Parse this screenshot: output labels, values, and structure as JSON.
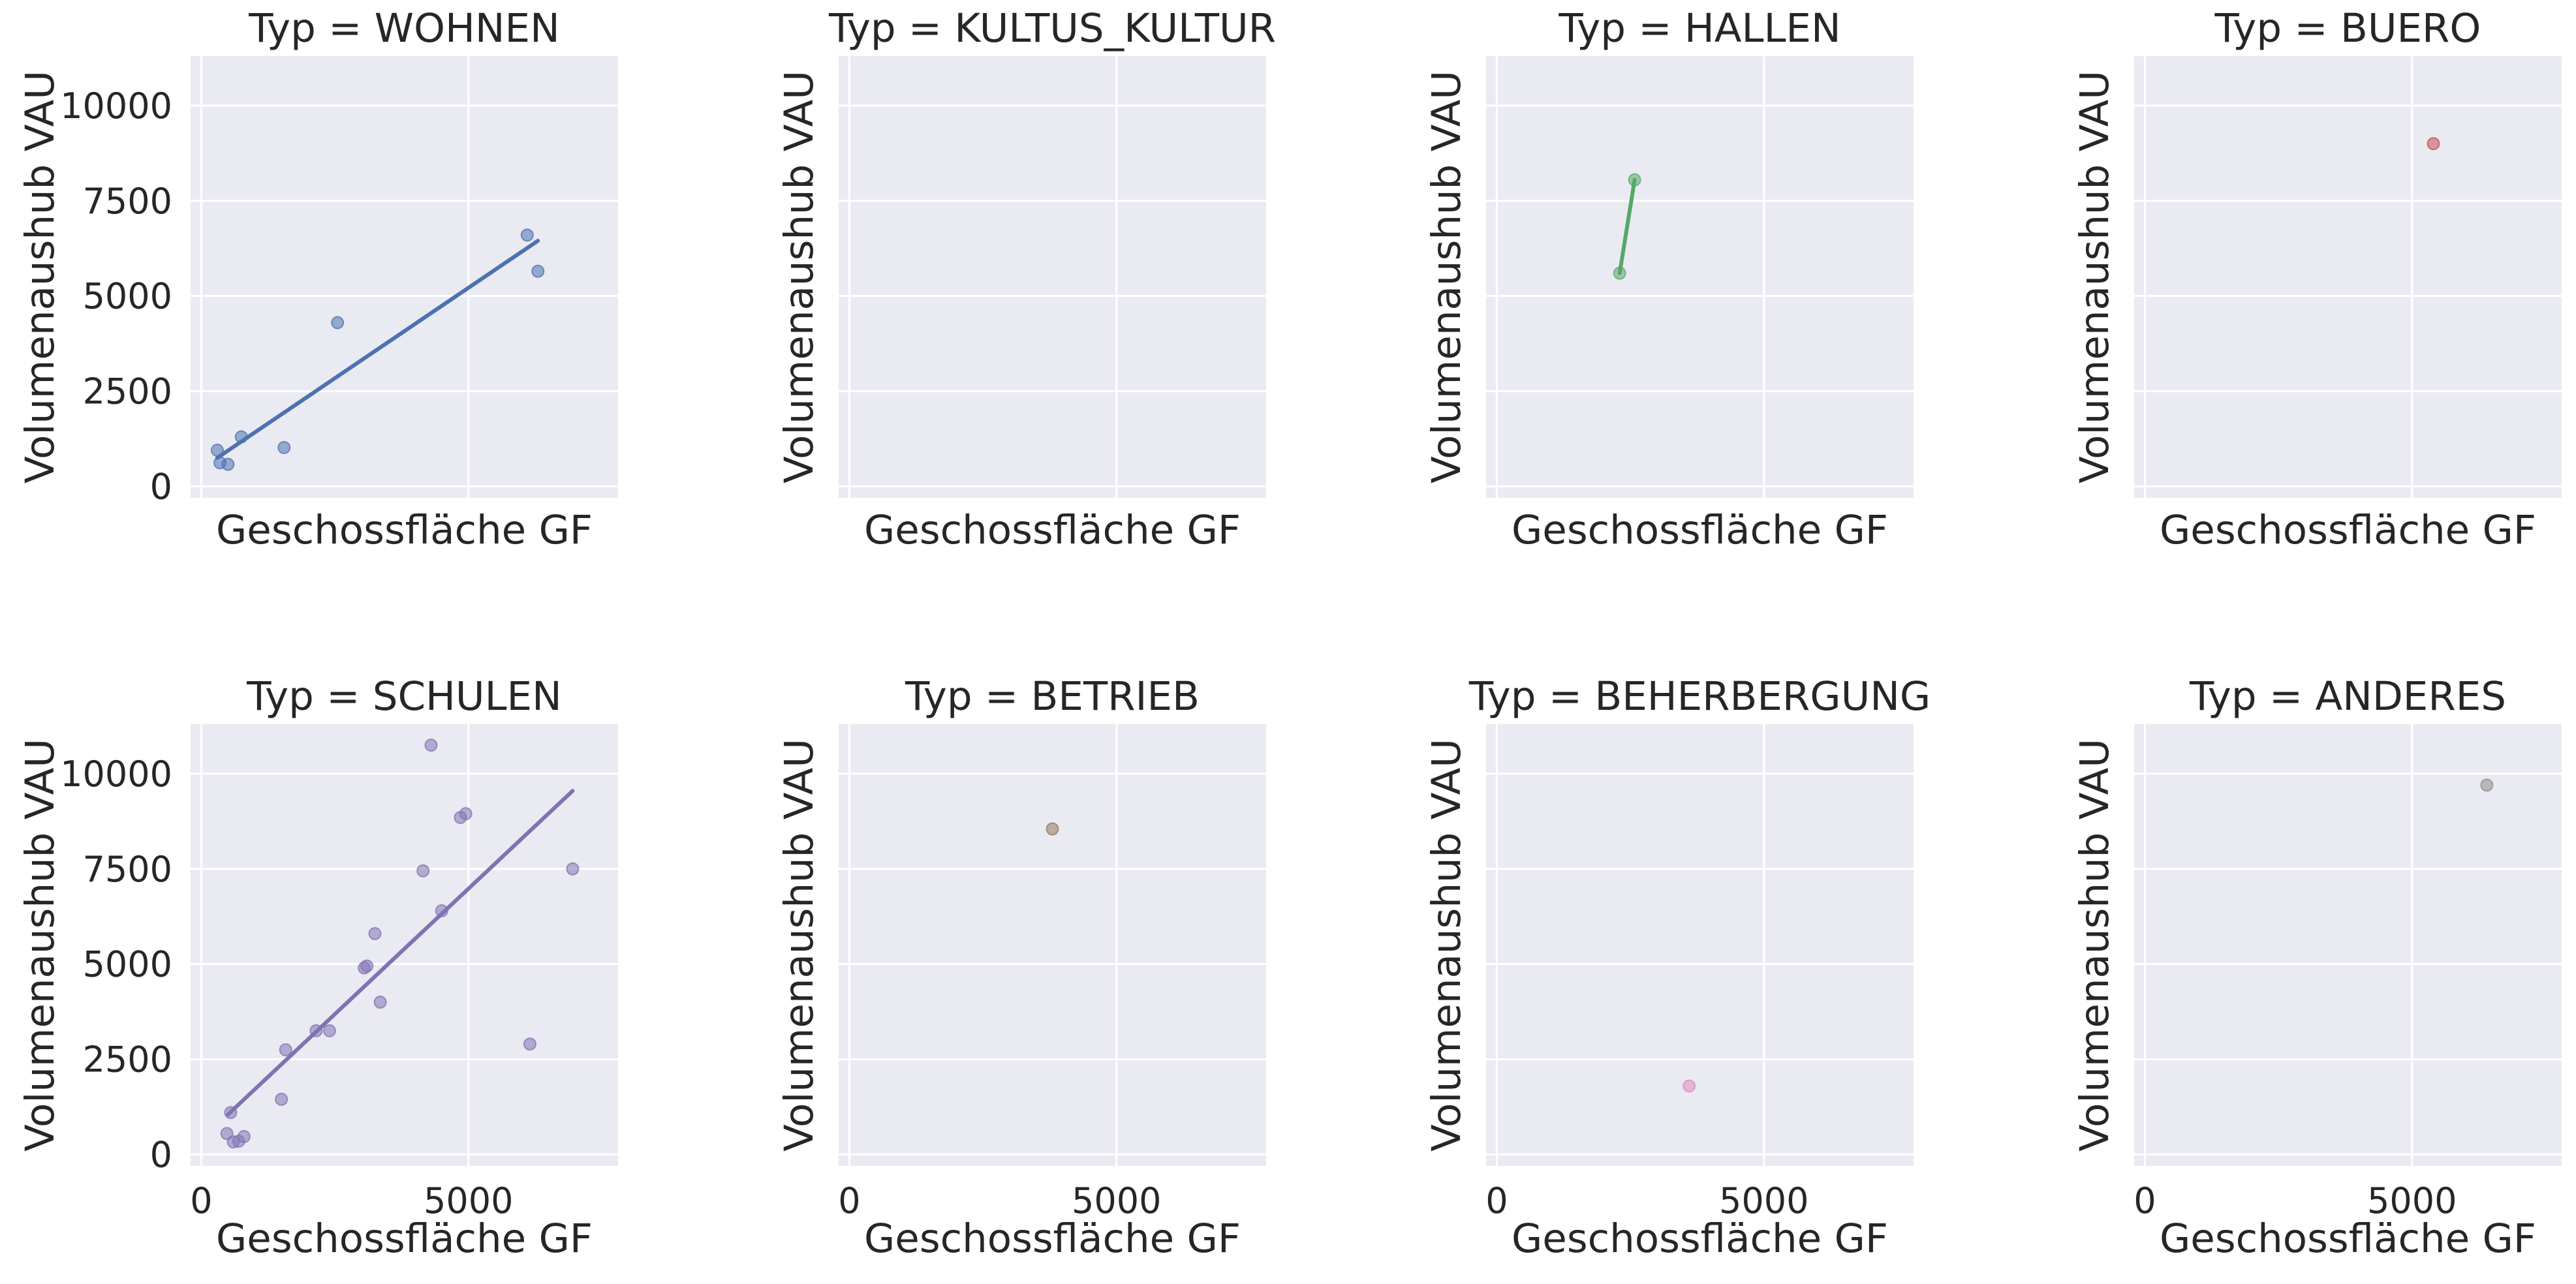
{
  "chart_data": {
    "type": "scatter",
    "style": "seaborn-darkgrid facet grid, 2 rows x 4 columns, shared axes, scatter with linear regression line",
    "xlabel": "Geschossfläche GF",
    "ylabel": "Volumenaushub VAU",
    "xlim": [
      -200,
      7800
    ],
    "ylim": [
      -300,
      11300
    ],
    "xticks": [
      0,
      5000
    ],
    "yticks": [
      0,
      2500,
      5000,
      7500,
      10000
    ],
    "xtick_labels": [
      "0",
      "5000"
    ],
    "ytick_labels": [
      "0",
      "2500",
      "5000",
      "7500",
      "10000"
    ],
    "grid": true,
    "facets": [
      {
        "title": "Typ = WOHNEN",
        "color": "#4c72b0",
        "points": [
          [
            300,
            950
          ],
          [
            350,
            620
          ],
          [
            500,
            580
          ],
          [
            750,
            1300
          ],
          [
            1550,
            1020
          ],
          [
            2550,
            4300
          ],
          [
            6100,
            6600
          ],
          [
            6300,
            5650
          ]
        ],
        "fit": [
          [
            300,
            750
          ],
          [
            6300,
            6450
          ]
        ]
      },
      {
        "title": "Typ = KULTUS_KULTUR",
        "color": "#dd8452",
        "points": [],
        "fit": null
      },
      {
        "title": "Typ = HALLEN",
        "color": "#55a868",
        "points": [
          [
            2300,
            5600
          ],
          [
            2580,
            8050
          ]
        ],
        "fit": [
          [
            2300,
            5600
          ],
          [
            2580,
            8050
          ]
        ]
      },
      {
        "title": "Typ = BUERO",
        "color": "#c44e52",
        "points": [
          [
            5400,
            9000
          ]
        ],
        "fit": null
      },
      {
        "title": "Typ = SCHULEN",
        "color": "#8172b3",
        "points": [
          [
            480,
            550
          ],
          [
            550,
            1100
          ],
          [
            600,
            330
          ],
          [
            700,
            350
          ],
          [
            800,
            470
          ],
          [
            1500,
            1450
          ],
          [
            1580,
            2750
          ],
          [
            2150,
            3250
          ],
          [
            2400,
            3250
          ],
          [
            3050,
            4900
          ],
          [
            3100,
            4950
          ],
          [
            3250,
            5800
          ],
          [
            3350,
            4000
          ],
          [
            4150,
            7450
          ],
          [
            4300,
            10750
          ],
          [
            4500,
            6400
          ],
          [
            4850,
            8850
          ],
          [
            4950,
            8950
          ],
          [
            6150,
            2900
          ],
          [
            6950,
            7500
          ]
        ],
        "fit": [
          [
            500,
            1050
          ],
          [
            6950,
            9550
          ]
        ]
      },
      {
        "title": "Typ = BETRIEB",
        "color": "#937860",
        "points": [
          [
            3800,
            8550
          ]
        ],
        "fit": null
      },
      {
        "title": "Typ = BEHERBERGUNG",
        "color": "#da8bc3",
        "points": [
          [
            3600,
            1800
          ]
        ],
        "fit": null
      },
      {
        "title": "Typ = ANDERES",
        "color": "#8c8c8c",
        "points": [
          [
            6400,
            9700
          ]
        ],
        "fit": null
      }
    ]
  }
}
